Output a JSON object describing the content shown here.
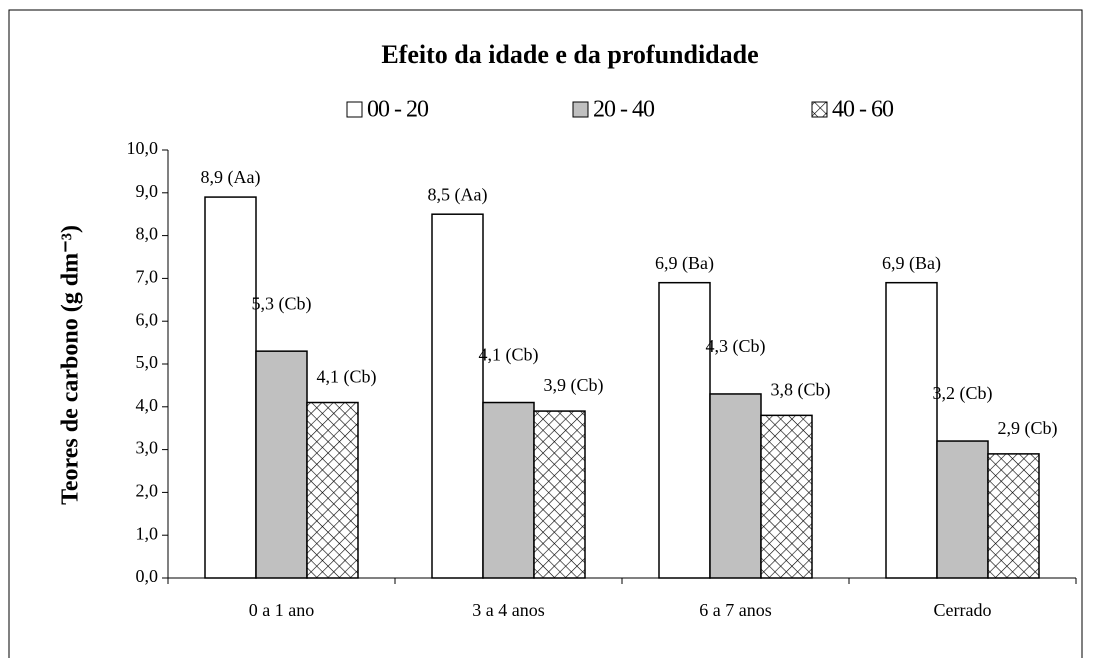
{
  "chart_data": {
    "type": "bar",
    "title": "Efeito da idade e da profundidade",
    "ylabel": "Teores de carbono (g dm⁻³)",
    "categories": [
      "0 a 1 ano",
      "3 a 4 anos",
      "6 a 7 anos",
      "Cerrado"
    ],
    "series": [
      {
        "name": "00 - 20",
        "color": "#ffffff",
        "values": [
          8.9,
          8.5,
          6.9,
          6.9
        ],
        "value_labels": [
          "8,9 (Aa)",
          "8,5 (Aa)",
          "6,9 (Ba)",
          "6,9 (Ba)"
        ]
      },
      {
        "name": "20 - 40",
        "color": "#c0c0c0",
        "values": [
          5.3,
          4.1,
          4.3,
          3.2
        ],
        "value_labels": [
          "5,3 (Cb)",
          "4,1 (Cb)",
          "4,3 (Cb)",
          "3,2 (Cb)"
        ]
      },
      {
        "name": "40 - 60",
        "color": "#ffffff",
        "hatch": true,
        "values": [
          4.1,
          3.9,
          3.8,
          2.9
        ],
        "value_labels": [
          "4,1 (Cb)",
          "3,9 (Cb)",
          "3,8 (Cb)",
          "2,9 (Cb)"
        ]
      }
    ],
    "ylim": [
      0,
      10
    ],
    "yticks": [
      {
        "value": 0,
        "label": "0,0"
      },
      {
        "value": 1,
        "label": "1,0"
      },
      {
        "value": 2,
        "label": "2,0"
      },
      {
        "value": 3,
        "label": "3,0"
      },
      {
        "value": 4,
        "label": "4,0"
      },
      {
        "value": 5,
        "label": "5,0"
      },
      {
        "value": 6,
        "label": "6,0"
      },
      {
        "value": 7,
        "label": "7,0"
      },
      {
        "value": 8,
        "label": "8,0"
      },
      {
        "value": 9,
        "label": "9,0"
      },
      {
        "value": 10,
        "label": "10,0"
      }
    ],
    "legend": "top"
  }
}
